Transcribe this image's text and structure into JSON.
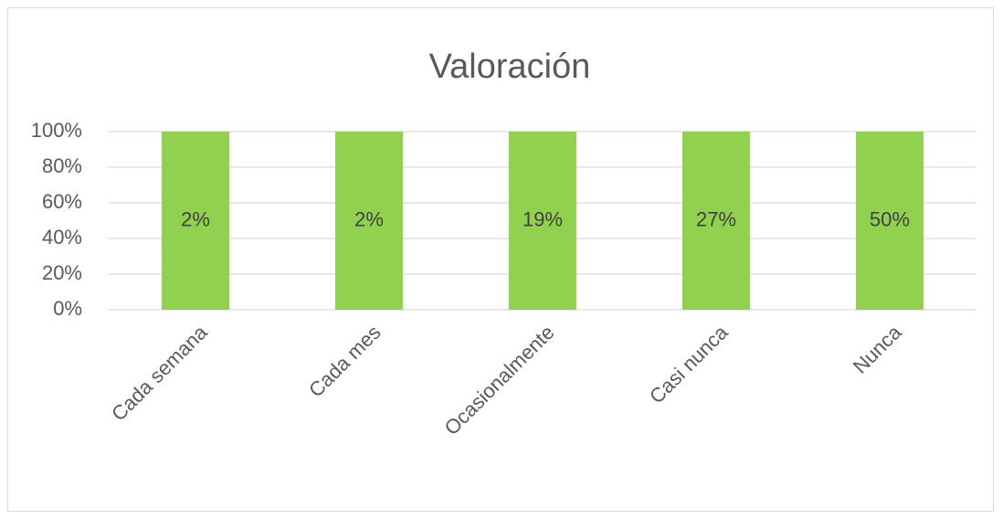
{
  "chart_data": {
    "type": "bar",
    "stacking": "percent",
    "title": "Valoración",
    "categories": [
      "Cada semana",
      "Cada mes",
      "Ocasionalmente",
      "Casi nunca",
      "Nunca"
    ],
    "series": [
      {
        "color": "#92d050",
        "values": [
          2,
          2,
          19,
          27,
          50
        ],
        "value_labels": [
          "2%",
          "2%",
          "19%",
          "27%",
          "50%"
        ]
      }
    ],
    "ylim": [
      0,
      100
    ],
    "yticks": [
      {
        "value": 0,
        "label": "0%"
      },
      {
        "value": 20,
        "label": "20%"
      },
      {
        "value": 40,
        "label": "40%"
      },
      {
        "value": 60,
        "label": "60%"
      },
      {
        "value": 80,
        "label": "80%"
      },
      {
        "value": 100,
        "label": "100%"
      }
    ],
    "grid": true
  }
}
